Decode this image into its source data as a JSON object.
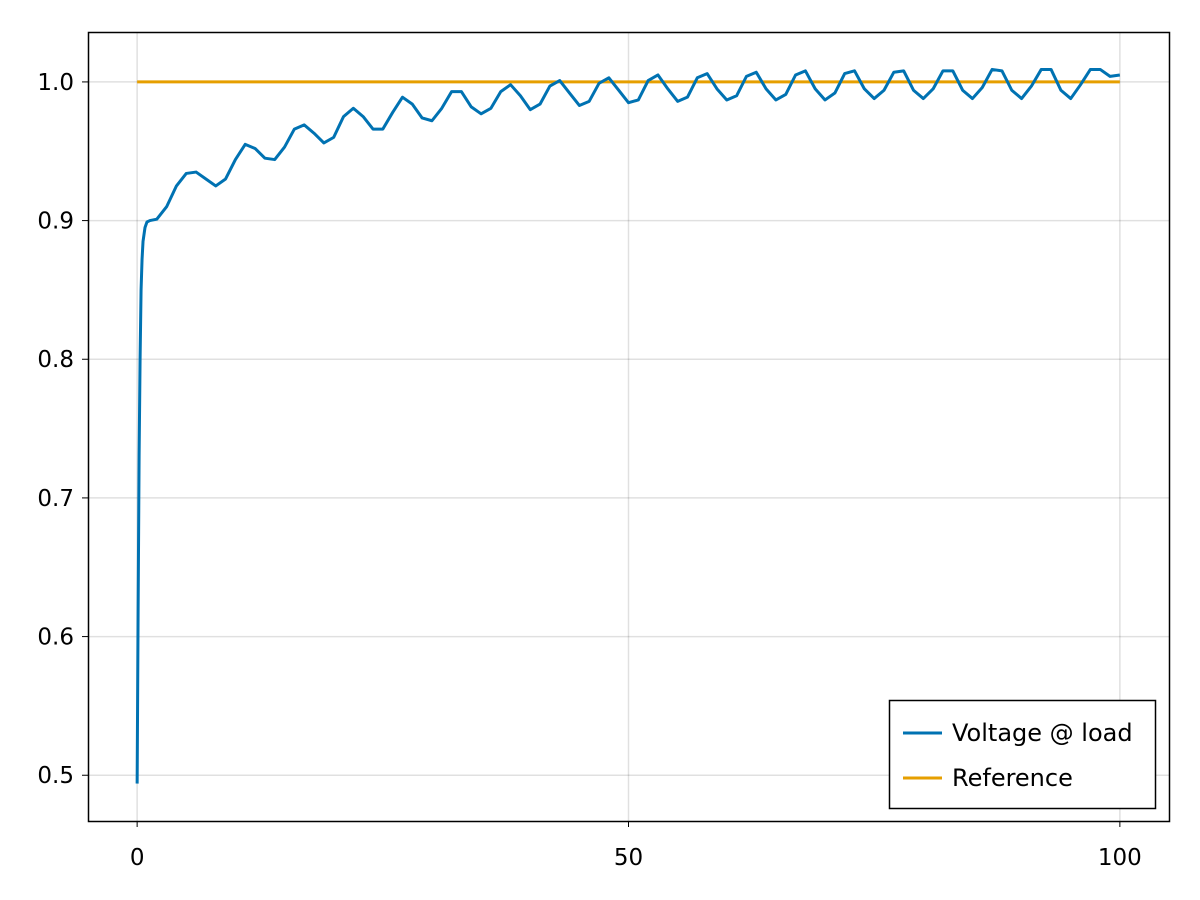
{
  "chart_data": {
    "type": "line",
    "xlim": [
      -5,
      105
    ],
    "ylim": [
      0.467,
      1.036
    ],
    "xticks": [
      0,
      50,
      100
    ],
    "xtick_labels": [
      "0",
      "50",
      "100"
    ],
    "yticks": [
      0.5,
      0.6,
      0.7,
      0.8,
      0.9,
      1.0
    ],
    "ytick_labels": [
      "0.5",
      "0.6",
      "0.7",
      "0.8",
      "0.9",
      "1.0"
    ],
    "grid": true,
    "legend_position": "bottom-right",
    "series": [
      {
        "name": "Voltage @ load",
        "color": "#0072b2",
        "x": [
          0,
          0.1,
          0.2,
          0.3,
          0.4,
          0.5,
          0.6,
          0.8,
          1.0,
          1.3,
          2,
          3,
          4,
          5,
          6,
          7,
          8,
          9,
          10,
          11,
          12,
          13,
          14,
          15,
          16,
          17,
          18,
          19,
          20,
          21,
          22,
          23,
          24,
          25,
          26,
          27,
          28,
          29,
          30,
          31,
          32,
          33,
          34,
          35,
          36,
          37,
          38,
          39,
          40,
          41,
          42,
          43,
          44,
          45,
          46,
          47,
          48,
          49,
          50,
          51,
          52,
          53,
          54,
          55,
          56,
          57,
          58,
          59,
          60,
          61,
          62,
          63,
          64,
          65,
          66,
          67,
          68,
          69,
          70,
          71,
          72,
          73,
          74,
          75,
          76,
          77,
          78,
          79,
          80,
          81,
          82,
          83,
          84,
          85,
          86,
          87,
          88,
          89,
          90,
          91,
          92,
          93,
          94,
          95,
          96,
          97,
          98,
          99,
          100
        ],
        "y": [
          0.494,
          0.62,
          0.73,
          0.8,
          0.85,
          0.872,
          0.885,
          0.895,
          0.899,
          0.9,
          0.901,
          0.91,
          0.925,
          0.934,
          0.935,
          0.93,
          0.925,
          0.93,
          0.944,
          0.955,
          0.952,
          0.945,
          0.944,
          0.953,
          0.966,
          0.969,
          0.963,
          0.956,
          0.96,
          0.975,
          0.981,
          0.975,
          0.966,
          0.966,
          0.978,
          0.989,
          0.984,
          0.974,
          0.972,
          0.981,
          0.993,
          0.993,
          0.982,
          0.977,
          0.981,
          0.993,
          0.998,
          0.99,
          0.98,
          0.984,
          0.997,
          1.001,
          0.992,
          0.983,
          0.986,
          0.999,
          1.003,
          0.994,
          0.985,
          0.987,
          1.001,
          1.005,
          0.995,
          0.986,
          0.989,
          1.003,
          1.006,
          0.995,
          0.987,
          0.99,
          1.004,
          1.007,
          0.995,
          0.987,
          0.991,
          1.005,
          1.008,
          0.995,
          0.987,
          0.992,
          1.006,
          1.008,
          0.995,
          0.988,
          0.994,
          1.007,
          1.008,
          0.994,
          0.988,
          0.995,
          1.008,
          1.008,
          0.994,
          0.988,
          0.996,
          1.009,
          1.008,
          0.994,
          0.988,
          0.997,
          1.009,
          1.009,
          0.994,
          0.988,
          0.998,
          1.009,
          1.009,
          1.004,
          1.005
        ]
      },
      {
        "name": "Reference",
        "color": "#e69f00",
        "x": [
          0,
          100
        ],
        "y": [
          1.0,
          1.0
        ]
      }
    ]
  }
}
